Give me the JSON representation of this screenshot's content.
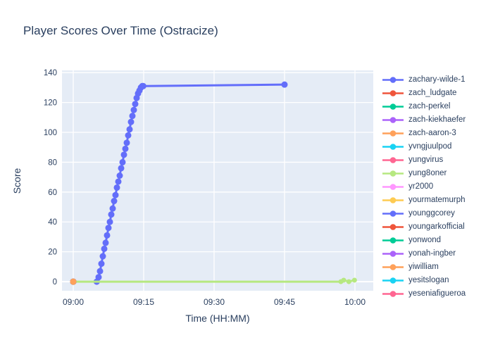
{
  "chart_data": {
    "type": "line",
    "title": "Player Scores Over Time (Ostracize)",
    "xlabel": "Time (HH:MM)",
    "ylabel": "Score",
    "grid": true,
    "legend_position": "right",
    "plot_bg_color": "#E5ECF6",
    "grid_color": "#FFFFFF",
    "text_color": "#2a3f5f",
    "x_unit": "minutes after 09:00",
    "x_range": [
      -2.4,
      63.9
    ],
    "y_range": [
      -6.1,
      141.5
    ],
    "x_ticks": [
      {
        "t": 0,
        "label": "09:00"
      },
      {
        "t": 15,
        "label": "09:15"
      },
      {
        "t": 30,
        "label": "09:30"
      },
      {
        "t": 45,
        "label": "09:45"
      },
      {
        "t": 60,
        "label": "10:00"
      }
    ],
    "y_ticks": [
      0,
      20,
      40,
      60,
      80,
      100,
      120,
      140
    ],
    "series": [
      {
        "name": "zachary-wilde-1",
        "color": "#636EFA",
        "mode": "lines+markers",
        "line_width": 3,
        "marker_size": 9,
        "points": [
          [
            5.0,
            0
          ],
          [
            5.4,
            3
          ],
          [
            5.7,
            7
          ],
          [
            6.0,
            12
          ],
          [
            6.3,
            17
          ],
          [
            6.6,
            22
          ],
          [
            6.9,
            26
          ],
          [
            7.2,
            31
          ],
          [
            7.5,
            36
          ],
          [
            7.8,
            40
          ],
          [
            8.1,
            45
          ],
          [
            8.4,
            49
          ],
          [
            8.7,
            54
          ],
          [
            9.0,
            58
          ],
          [
            9.3,
            63
          ],
          [
            9.6,
            67
          ],
          [
            9.9,
            71
          ],
          [
            10.2,
            76
          ],
          [
            10.5,
            80
          ],
          [
            10.8,
            85
          ],
          [
            11.1,
            89
          ],
          [
            11.4,
            93
          ],
          [
            11.7,
            98
          ],
          [
            12.0,
            102
          ],
          [
            12.3,
            107
          ],
          [
            12.6,
            111
          ],
          [
            12.9,
            115
          ],
          [
            13.2,
            119
          ],
          [
            13.5,
            123
          ],
          [
            13.8,
            126
          ],
          [
            14.1,
            128
          ],
          [
            14.4,
            130
          ],
          [
            14.7,
            131
          ],
          [
            14.9,
            131
          ],
          [
            45,
            132
          ]
        ]
      },
      {
        "name": "zach_ludgate",
        "color": "#EF553B",
        "mode": "markers",
        "line_width": 3,
        "marker_size": 9,
        "points": [
          [
            0,
            0
          ]
        ]
      },
      {
        "name": "zach-perkel",
        "color": "#00CC96",
        "mode": "markers",
        "line_width": 3,
        "marker_size": 9,
        "points": [
          [
            0,
            0
          ]
        ]
      },
      {
        "name": "zach-kiekhaefer",
        "color": "#AB63FA",
        "mode": "markers",
        "line_width": 3,
        "marker_size": 9,
        "points": [
          [
            0,
            0
          ]
        ]
      },
      {
        "name": "zach-aaron-3",
        "color": "#FFA15A",
        "mode": "markers",
        "line_width": 3,
        "marker_size": 9,
        "points": [
          [
            0,
            0
          ]
        ]
      },
      {
        "name": "yvngjuulpod",
        "color": "#19D3F3",
        "mode": "markers",
        "line_width": 3,
        "marker_size": 9,
        "points": [
          [
            0,
            0
          ]
        ]
      },
      {
        "name": "yungvirus",
        "color": "#FF6692",
        "mode": "markers",
        "line_width": 3,
        "marker_size": 9,
        "points": [
          [
            0,
            0
          ]
        ]
      },
      {
        "name": "yung8oner",
        "color": "#B6E880",
        "mode": "lines+markers",
        "line_width": 3,
        "marker_size": 7,
        "points": [
          [
            0,
            0
          ],
          [
            57.0,
            0
          ],
          [
            57.6,
            1
          ],
          [
            58.7,
            0
          ],
          [
            59.9,
            1
          ]
        ]
      },
      {
        "name": "yr2000",
        "color": "#FF97FF",
        "mode": "markers",
        "line_width": 3,
        "marker_size": 9,
        "points": [
          [
            0,
            0
          ]
        ]
      },
      {
        "name": "yourmatemurph",
        "color": "#FECB52",
        "mode": "markers",
        "line_width": 3,
        "marker_size": 9,
        "points": [
          [
            0,
            0
          ]
        ]
      },
      {
        "name": "younggcorey",
        "color": "#636EFA",
        "mode": "markers",
        "line_width": 3,
        "marker_size": 9,
        "points": [
          [
            0,
            0
          ]
        ]
      },
      {
        "name": "youngarkofficial",
        "color": "#EF553B",
        "mode": "markers",
        "line_width": 3,
        "marker_size": 9,
        "points": [
          [
            0,
            0
          ]
        ]
      },
      {
        "name": "yonwond",
        "color": "#00CC96",
        "mode": "markers",
        "line_width": 3,
        "marker_size": 9,
        "points": [
          [
            0,
            0
          ]
        ]
      },
      {
        "name": "yonah-ingber",
        "color": "#AB63FA",
        "mode": "markers",
        "line_width": 3,
        "marker_size": 9,
        "points": [
          [
            0,
            0
          ]
        ]
      },
      {
        "name": "yiwilliam",
        "color": "#FFA15A",
        "mode": "markers",
        "line_width": 3,
        "marker_size": 9,
        "points": [
          [
            0,
            0
          ]
        ]
      },
      {
        "name": "yesitslogan",
        "color": "#19D3F3",
        "mode": "markers",
        "line_width": 3,
        "marker_size": 9,
        "points": []
      },
      {
        "name": "yeseniafigueroa",
        "color": "#FF6692",
        "mode": "markers",
        "line_width": 3,
        "marker_size": 9,
        "points": []
      }
    ]
  }
}
